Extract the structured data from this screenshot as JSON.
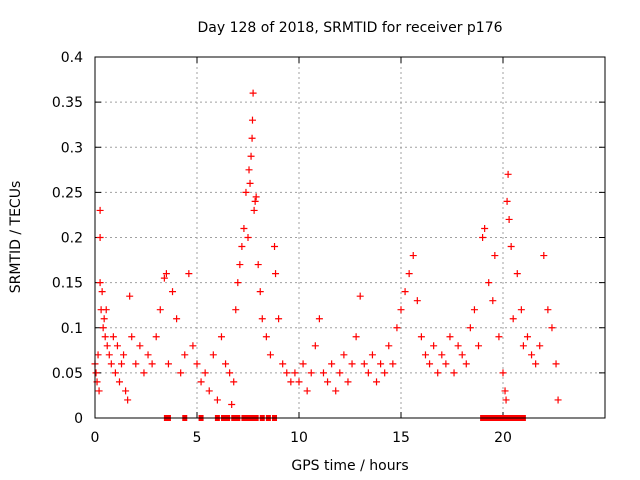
{
  "chart_data": {
    "type": "scatter",
    "title": "Day 128 of 2018, SRMTID for receiver p176",
    "xlabel": "GPS time / hours",
    "ylabel": "SRMTID / TECUs",
    "xlim": [
      0,
      25
    ],
    "ylim": [
      0,
      0.4
    ],
    "x_ticks": [
      0,
      5,
      10,
      15,
      20
    ],
    "y_ticks": [
      0,
      0.05,
      0.1,
      0.15,
      0.2,
      0.25,
      0.3,
      0.35,
      0.4
    ],
    "x_tick_labels": [
      "0",
      "5",
      "10",
      "15",
      "20"
    ],
    "y_tick_labels": [
      "0",
      "0.05",
      "0.1",
      "0.15",
      "0.2",
      "0.25",
      "0.3",
      "0.35",
      "0.4"
    ],
    "grid": true,
    "marker": "+",
    "color": "#ff0000",
    "series": [
      {
        "name": "SRMTID",
        "note": "approximately 2000 points; representative values read from the figure",
        "points": [
          [
            0.0,
            0.06
          ],
          [
            0.05,
            0.05
          ],
          [
            0.1,
            0.04
          ],
          [
            0.15,
            0.07
          ],
          [
            0.2,
            0.03
          ],
          [
            0.25,
            0.15
          ],
          [
            0.25,
            0.2
          ],
          [
            0.25,
            0.23
          ],
          [
            0.3,
            0.12
          ],
          [
            0.35,
            0.14
          ],
          [
            0.4,
            0.1
          ],
          [
            0.45,
            0.11
          ],
          [
            0.5,
            0.09
          ],
          [
            0.55,
            0.12
          ],
          [
            0.6,
            0.08
          ],
          [
            0.7,
            0.07
          ],
          [
            0.8,
            0.06
          ],
          [
            0.9,
            0.09
          ],
          [
            1.0,
            0.05
          ],
          [
            1.1,
            0.08
          ],
          [
            1.2,
            0.04
          ],
          [
            1.3,
            0.06
          ],
          [
            1.4,
            0.07
          ],
          [
            1.5,
            0.03
          ],
          [
            1.6,
            0.02
          ],
          [
            1.7,
            0.135
          ],
          [
            1.8,
            0.09
          ],
          [
            2.0,
            0.06
          ],
          [
            2.2,
            0.08
          ],
          [
            2.4,
            0.05
          ],
          [
            2.6,
            0.07
          ],
          [
            2.8,
            0.06
          ],
          [
            3.0,
            0.09
          ],
          [
            3.2,
            0.12
          ],
          [
            3.4,
            0.155
          ],
          [
            3.5,
            0.16
          ],
          [
            3.6,
            0.06
          ],
          [
            3.8,
            0.14
          ],
          [
            4.0,
            0.11
          ],
          [
            4.2,
            0.05
          ],
          [
            4.4,
            0.07
          ],
          [
            4.6,
            0.16
          ],
          [
            4.8,
            0.08
          ],
          [
            5.0,
            0.06
          ],
          [
            5.2,
            0.04
          ],
          [
            5.4,
            0.05
          ],
          [
            5.6,
            0.03
          ],
          [
            5.8,
            0.07
          ],
          [
            6.0,
            0.02
          ],
          [
            6.2,
            0.09
          ],
          [
            6.4,
            0.06
          ],
          [
            6.6,
            0.05
          ],
          [
            6.7,
            0.015
          ],
          [
            6.8,
            0.04
          ],
          [
            6.9,
            0.12
          ],
          [
            7.0,
            0.15
          ],
          [
            7.1,
            0.17
          ],
          [
            7.2,
            0.19
          ],
          [
            7.3,
            0.21
          ],
          [
            7.4,
            0.25
          ],
          [
            7.5,
            0.2
          ],
          [
            7.55,
            0.275
          ],
          [
            7.6,
            0.26
          ],
          [
            7.65,
            0.29
          ],
          [
            7.7,
            0.31
          ],
          [
            7.72,
            0.33
          ],
          [
            7.75,
            0.36
          ],
          [
            7.8,
            0.23
          ],
          [
            7.85,
            0.24
          ],
          [
            7.9,
            0.245
          ],
          [
            8.0,
            0.17
          ],
          [
            8.1,
            0.14
          ],
          [
            8.2,
            0.11
          ],
          [
            8.4,
            0.09
          ],
          [
            8.6,
            0.07
          ],
          [
            8.8,
            0.19
          ],
          [
            8.85,
            0.16
          ],
          [
            9.0,
            0.11
          ],
          [
            9.2,
            0.06
          ],
          [
            9.4,
            0.05
          ],
          [
            9.6,
            0.04
          ],
          [
            9.8,
            0.05
          ],
          [
            10.0,
            0.04
          ],
          [
            10.2,
            0.06
          ],
          [
            10.4,
            0.03
          ],
          [
            10.6,
            0.05
          ],
          [
            10.8,
            0.08
          ],
          [
            11.0,
            0.11
          ],
          [
            11.2,
            0.05
          ],
          [
            11.4,
            0.04
          ],
          [
            11.6,
            0.06
          ],
          [
            11.8,
            0.03
          ],
          [
            12.0,
            0.05
          ],
          [
            12.2,
            0.07
          ],
          [
            12.4,
            0.04
          ],
          [
            12.6,
            0.06
          ],
          [
            12.8,
            0.09
          ],
          [
            13.0,
            0.135
          ],
          [
            13.2,
            0.06
          ],
          [
            13.4,
            0.05
          ],
          [
            13.6,
            0.07
          ],
          [
            13.8,
            0.04
          ],
          [
            14.0,
            0.06
          ],
          [
            14.2,
            0.05
          ],
          [
            14.4,
            0.08
          ],
          [
            14.6,
            0.06
          ],
          [
            14.8,
            0.1
          ],
          [
            15.0,
            0.12
          ],
          [
            15.2,
            0.14
          ],
          [
            15.4,
            0.16
          ],
          [
            15.6,
            0.18
          ],
          [
            15.8,
            0.13
          ],
          [
            16.0,
            0.09
          ],
          [
            16.2,
            0.07
          ],
          [
            16.4,
            0.06
          ],
          [
            16.6,
            0.08
          ],
          [
            16.8,
            0.05
          ],
          [
            17.0,
            0.07
          ],
          [
            17.2,
            0.06
          ],
          [
            17.4,
            0.09
          ],
          [
            17.6,
            0.05
          ],
          [
            17.8,
            0.08
          ],
          [
            18.0,
            0.07
          ],
          [
            18.2,
            0.06
          ],
          [
            18.4,
            0.1
          ],
          [
            18.6,
            0.12
          ],
          [
            18.8,
            0.08
          ],
          [
            19.0,
            0.2
          ],
          [
            19.1,
            0.21
          ],
          [
            19.3,
            0.15
          ],
          [
            19.5,
            0.13
          ],
          [
            19.6,
            0.18
          ],
          [
            19.8,
            0.09
          ],
          [
            20.0,
            0.05
          ],
          [
            20.1,
            0.03
          ],
          [
            20.15,
            0.02
          ],
          [
            20.2,
            0.24
          ],
          [
            20.25,
            0.27
          ],
          [
            20.3,
            0.22
          ],
          [
            20.4,
            0.19
          ],
          [
            20.5,
            0.11
          ],
          [
            20.7,
            0.16
          ],
          [
            20.9,
            0.12
          ],
          [
            21.0,
            0.08
          ],
          [
            21.2,
            0.09
          ],
          [
            21.4,
            0.07
          ],
          [
            21.6,
            0.06
          ],
          [
            21.8,
            0.08
          ],
          [
            22.0,
            0.18
          ],
          [
            22.2,
            0.12
          ],
          [
            22.4,
            0.1
          ],
          [
            22.6,
            0.06
          ],
          [
            22.7,
            0.02
          ]
        ]
      }
    ],
    "zero_value_hours": [
      3.5,
      3.6,
      4.4,
      5.2,
      6.0,
      6.3,
      6.5,
      6.8,
      7.0,
      7.3,
      7.5,
      7.7,
      7.9,
      8.2,
      8.5,
      8.8,
      19.0,
      19.2,
      19.4,
      19.6,
      19.8,
      20.0,
      20.2,
      20.4,
      20.6,
      20.8,
      21.0
    ]
  }
}
